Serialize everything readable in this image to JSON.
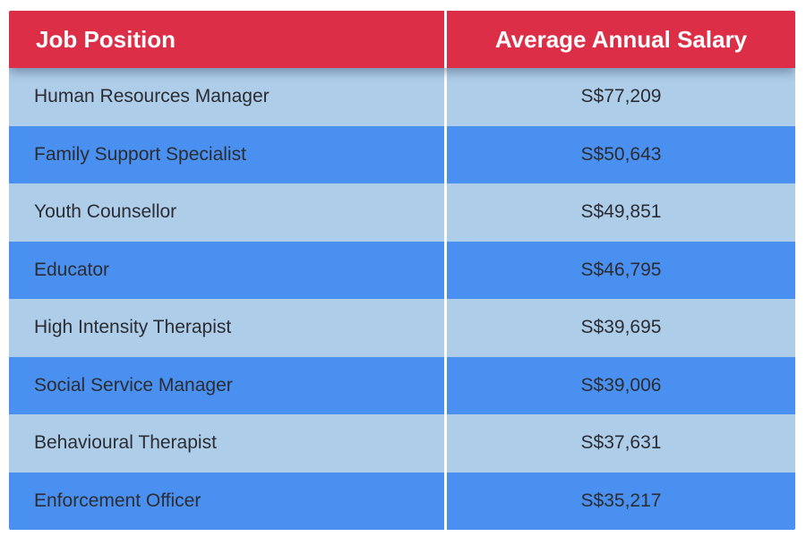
{
  "table": {
    "header": {
      "col1": "Job Position",
      "col2": "Average Annual Salary"
    },
    "rows": [
      {
        "position": "Human Resources Manager",
        "salary": "S$77,209"
      },
      {
        "position": "Family Support Specialist",
        "salary": "S$50,643"
      },
      {
        "position": "Youth Counsellor",
        "salary": "S$49,851"
      },
      {
        "position": "Educator",
        "salary": "S$46,795"
      },
      {
        "position": "High Intensity Therapist",
        "salary": "S$39,695"
      },
      {
        "position": "Social Service Manager",
        "salary": "S$39,006"
      },
      {
        "position": "Behavioural Therapist",
        "salary": "S$37,631"
      },
      {
        "position": "Enforcement Officer",
        "salary": "S$35,217"
      }
    ]
  },
  "colors": {
    "header_bg": "#DC2E46",
    "header_text": "#FFFFFF",
    "row_light": "#AECDE9",
    "row_blue": "#4A90F0",
    "row_text": "#2B2D33",
    "divider": "#FFFFFF"
  },
  "chart_data": {
    "type": "table",
    "title": "",
    "columns": [
      "Job Position",
      "Average Annual Salary"
    ],
    "rows": [
      [
        "Human Resources Manager",
        "S$77,209"
      ],
      [
        "Family Support Specialist",
        "S$50,643"
      ],
      [
        "Youth Counsellor",
        "S$49,851"
      ],
      [
        "Educator",
        "S$46,795"
      ],
      [
        "High Intensity Therapist",
        "S$39,695"
      ],
      [
        "Social Service Manager",
        "S$39,006"
      ],
      [
        "Behavioural Therapist",
        "S$37,631"
      ],
      [
        "Enforcement Officer",
        "S$35,217"
      ]
    ],
    "values_sgd": [
      77209,
      50643,
      49851,
      46795,
      39695,
      39006,
      37631,
      35217
    ],
    "currency": "SGD",
    "layout_hints": {
      "header_style": "crimson banner, white bold text",
      "row_style": "alternating light-blue / medium-blue bands",
      "salary_column_alignment": "center",
      "position_column_alignment": "left"
    }
  }
}
